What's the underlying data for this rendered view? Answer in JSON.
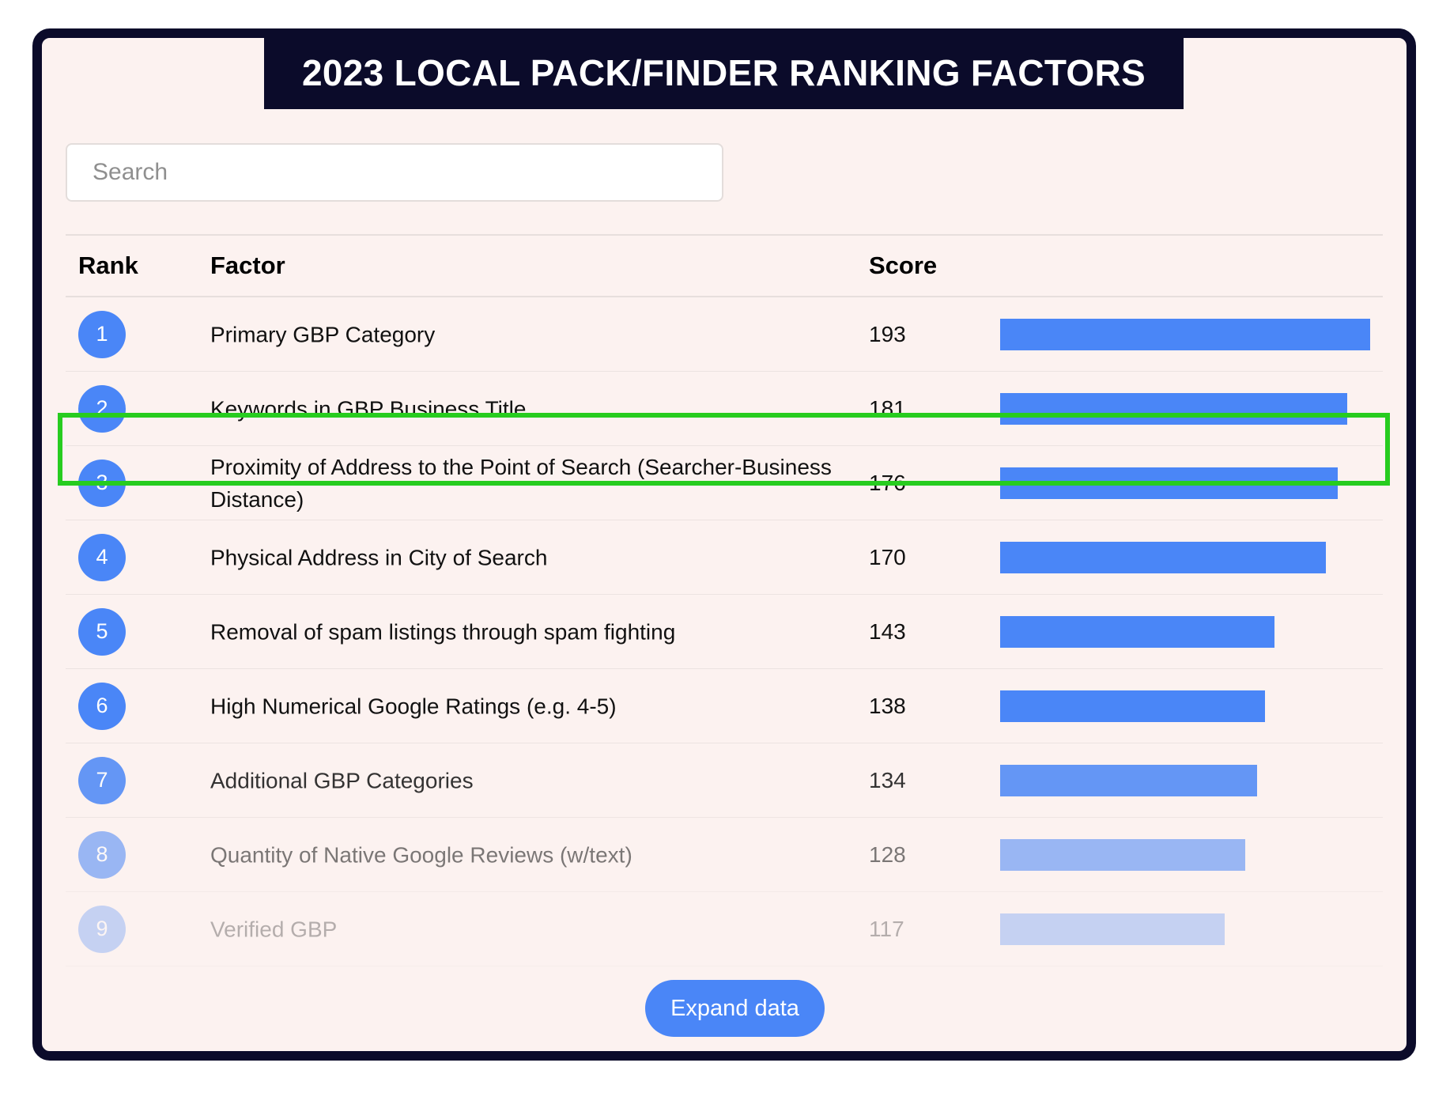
{
  "title": "2023 LOCAL PACK/FINDER RANKING FACTORS",
  "search": {
    "placeholder": "Search",
    "value": ""
  },
  "table": {
    "headers": {
      "rank": "Rank",
      "factor": "Factor",
      "score": "Score"
    },
    "max_score": 193,
    "rows": [
      {
        "rank": "1",
        "factor": "Primary GBP Category",
        "score": 193,
        "fade": 1.0
      },
      {
        "rank": "2",
        "factor": "Keywords in GBP Business Title",
        "score": 181,
        "fade": 1.0
      },
      {
        "rank": "3",
        "factor": "Proximity of Address to the Point of Search (Searcher-Business Distance)",
        "score": 176,
        "fade": 1.0
      },
      {
        "rank": "4",
        "factor": "Physical Address in City of Search",
        "score": 170,
        "fade": 1.0
      },
      {
        "rank": "5",
        "factor": "Removal of spam listings through spam fighting",
        "score": 143,
        "fade": 1.0
      },
      {
        "rank": "6",
        "factor": "High Numerical Google Ratings (e.g. 4-5)",
        "score": 138,
        "fade": 1.0
      },
      {
        "rank": "7",
        "factor": "Additional GBP Categories",
        "score": 134,
        "fade": 0.85
      },
      {
        "rank": "8",
        "factor": "Quantity of Native Google Reviews (w/text)",
        "score": 128,
        "fade": 0.55
      },
      {
        "rank": "9",
        "factor": "Verified GBP",
        "score": 117,
        "fade": 0.3
      }
    ],
    "highlighted_rank": "2"
  },
  "expand_button": {
    "label": "Expand data"
  },
  "colors": {
    "accent": "#4a86f7",
    "banner": "#0b0b2a",
    "highlight": "#27cc1f",
    "panel": "#fcf2f0"
  }
}
